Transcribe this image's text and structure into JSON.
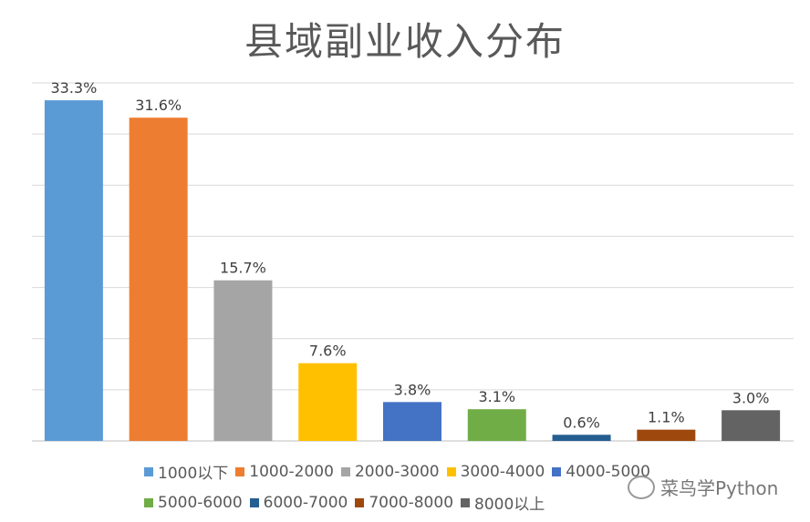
{
  "chart_data": {
    "type": "bar",
    "title": "县域副业收入分布",
    "categories": [
      "1000以下",
      "1000-2000",
      "2000-3000",
      "3000-4000",
      "4000-5000",
      "5000-6000",
      "6000-7000",
      "7000-8000",
      "8000以上"
    ],
    "values": [
      33.3,
      31.6,
      15.7,
      7.6,
      3.8,
      3.1,
      0.6,
      1.1,
      3.0
    ],
    "data_labels": [
      "33.3%",
      "31.6%",
      "15.7%",
      "7.6%",
      "3.8%",
      "3.1%",
      "0.6%",
      "1.1%",
      "3.0%"
    ],
    "colors": [
      "#5B9BD5",
      "#ED7D31",
      "#A5A5A5",
      "#FFC000",
      "#4472C4",
      "#70AD47",
      "#255E91",
      "#9E480E",
      "#636363"
    ],
    "xlabel": "",
    "ylabel": "",
    "ylim": [
      0,
      35
    ],
    "grid": true,
    "legend_position": "bottom"
  },
  "watermark": "菜鸟学Python"
}
